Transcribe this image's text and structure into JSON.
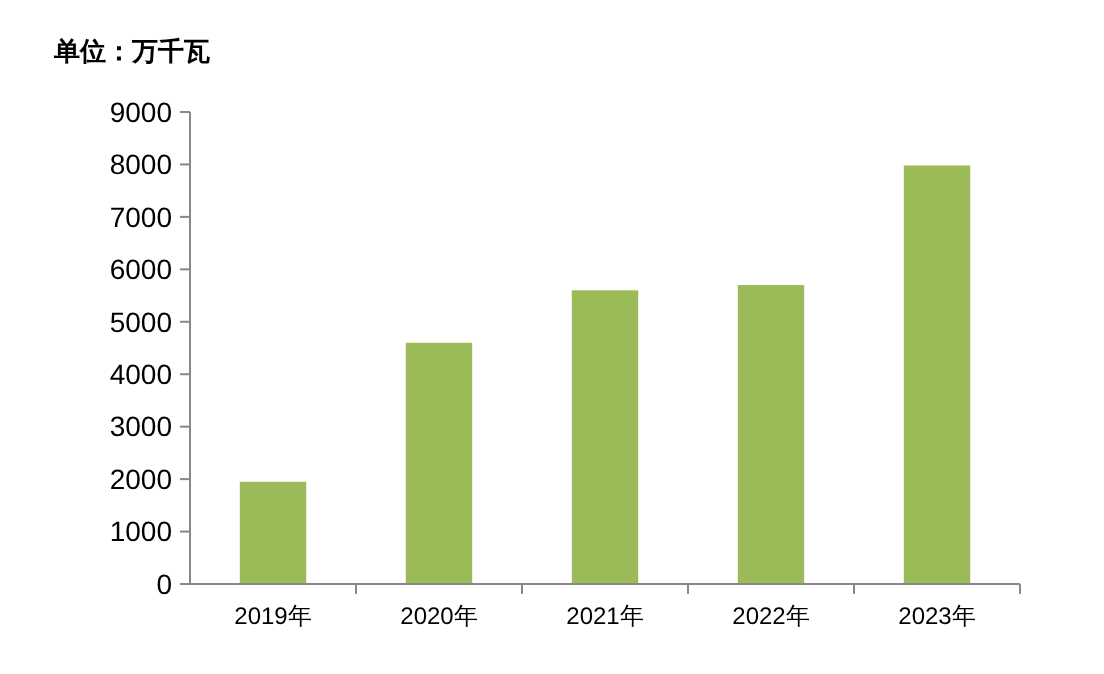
{
  "chart_data": {
    "type": "bar",
    "ylabel": "单位：万千瓦",
    "categories": [
      "2019年",
      "2020年",
      "2021年",
      "2022年",
      "2023年"
    ],
    "values": [
      1950,
      4600,
      5600,
      5700,
      7980
    ],
    "color": "#9bbb59",
    "ylim": [
      0,
      9000
    ],
    "yticks": [
      0,
      1000,
      2000,
      3000,
      4000,
      5000,
      6000,
      7000,
      8000,
      9000
    ],
    "grid": false
  }
}
